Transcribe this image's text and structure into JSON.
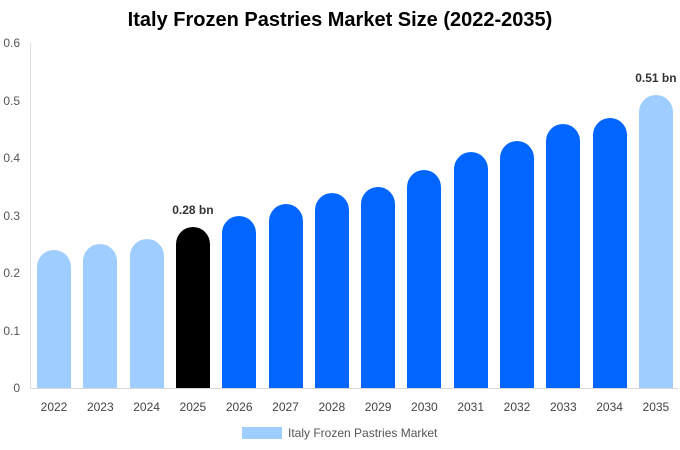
{
  "chart_data": {
    "type": "bar",
    "title": "Italy Frozen Pastries Market Size (2022-2035)",
    "xlabel": "",
    "ylabel": "",
    "ylim": [
      0,
      0.6
    ],
    "yticks": [
      "0",
      "0.1",
      "0.2",
      "0.3",
      "0.4",
      "0.5",
      "0.6"
    ],
    "grid": false,
    "legend_position": "bottom",
    "categories": [
      "2022",
      "2023",
      "2024",
      "2025",
      "2026",
      "2027",
      "2028",
      "2029",
      "2030",
      "2031",
      "2032",
      "2033",
      "2034",
      "2035"
    ],
    "series": [
      {
        "name": "Italy Frozen Pastries Market",
        "values": [
          0.24,
          0.25,
          0.26,
          0.28,
          0.3,
          0.32,
          0.34,
          0.35,
          0.38,
          0.41,
          0.43,
          0.46,
          0.47,
          0.51
        ],
        "colors": [
          "#a0cdff",
          "#a0cdff",
          "#a0cdff",
          "#000000",
          "#0066ff",
          "#0066ff",
          "#0066ff",
          "#0066ff",
          "#0066ff",
          "#0066ff",
          "#0066ff",
          "#0066ff",
          "#0066ff",
          "#a0cdff"
        ]
      }
    ],
    "annotations": [
      {
        "category": "2025",
        "text": "0.28 bn"
      },
      {
        "category": "2035",
        "text": "0.51 bn"
      }
    ]
  },
  "legend": {
    "label": "Italy Frozen Pastries Market",
    "color": "#a0cdff"
  }
}
